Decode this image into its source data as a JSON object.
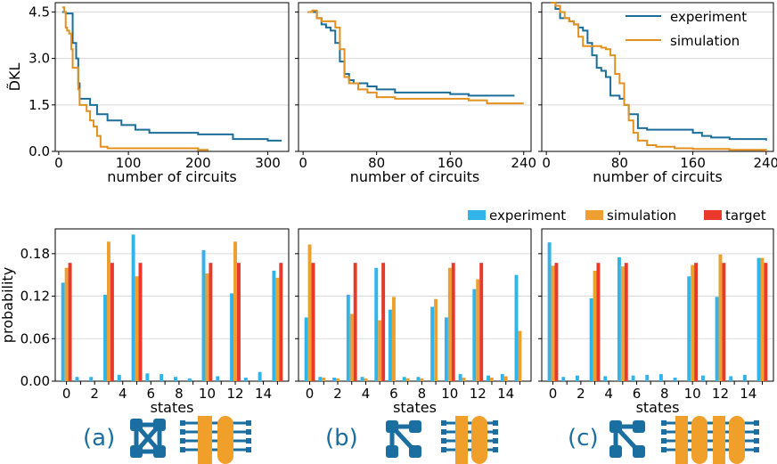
{
  "colors": {
    "exp_line": "#1a6e99",
    "sim_line": "#e3901f",
    "exp_bar": "#31b4ea",
    "sim_bar": "#eda02f",
    "target_bar": "#e8392a",
    "icon_blue": "#1b6fa0",
    "icon_orange": "#f0a02a"
  },
  "top_legend": [
    "experiment",
    "simulation"
  ],
  "bottom_legend": [
    "experiment",
    "simulation",
    "target"
  ],
  "panel_labels": [
    "(a)",
    "(b)",
    "(c)"
  ],
  "chart_data": [
    {
      "type": "line",
      "panel": "top-a",
      "xlabel": "number of circuits",
      "ylabel": "D̃KL",
      "xlim": [
        -5,
        330
      ],
      "ylim": [
        0,
        4.8
      ],
      "xticks": [
        0,
        100,
        200,
        300
      ],
      "yticks": [
        0.0,
        1.5,
        3.0,
        4.5
      ],
      "ytick_labels": [
        "0.0",
        "1.5",
        "3.0",
        "4.5"
      ],
      "series": [
        {
          "name": "experiment",
          "x": [
            5,
            10,
            12,
            15,
            18,
            20,
            25,
            28,
            30,
            35,
            40,
            45,
            50,
            55,
            60,
            70,
            80,
            90,
            100,
            110,
            120,
            130,
            140,
            150,
            200,
            250,
            260,
            300,
            320
          ],
          "y": [
            4.5,
            4.45,
            4.45,
            4.45,
            4.45,
            3.5,
            3.0,
            2.2,
            1.7,
            1.7,
            1.7,
            1.5,
            1.5,
            1.2,
            1.2,
            1.0,
            1.0,
            0.85,
            0.85,
            0.7,
            0.7,
            0.6,
            0.6,
            0.6,
            0.55,
            0.4,
            0.4,
            0.35,
            0.35
          ]
        },
        {
          "name": "simulation",
          "x": [
            5,
            8,
            10,
            12,
            15,
            18,
            20,
            22,
            25,
            28,
            30,
            35,
            40,
            45,
            50,
            55,
            60,
            70,
            100,
            150,
            200,
            215
          ],
          "y": [
            4.65,
            4.5,
            4.0,
            3.9,
            3.8,
            3.3,
            2.7,
            2.7,
            2.7,
            2.0,
            1.5,
            1.5,
            1.3,
            1.0,
            0.8,
            0.5,
            0.15,
            0.1,
            0.1,
            0.1,
            0.05,
            0.05
          ]
        }
      ]
    },
    {
      "type": "line",
      "panel": "top-b",
      "xlabel": "number of circuits",
      "ylabel": "",
      "xlim": [
        -5,
        248
      ],
      "ylim": [
        0,
        4.8
      ],
      "xticks": [
        0,
        80,
        160,
        240
      ],
      "yticks": [
        0.0,
        1.5,
        3.0,
        4.5
      ],
      "series": [
        {
          "name": "experiment",
          "x": [
            5,
            10,
            12,
            15,
            20,
            25,
            30,
            35,
            40,
            45,
            50,
            55,
            60,
            70,
            80,
            90,
            100,
            110,
            120,
            140,
            160,
            170,
            180,
            200,
            220,
            230
          ],
          "y": [
            4.5,
            4.5,
            4.5,
            4.3,
            4.1,
            4.0,
            3.9,
            3.5,
            2.9,
            2.5,
            2.3,
            2.2,
            2.2,
            2.1,
            2.0,
            2.0,
            1.9,
            1.9,
            1.9,
            1.9,
            1.85,
            1.85,
            1.8,
            1.8,
            1.8,
            1.8
          ]
        },
        {
          "name": "simulation",
          "x": [
            5,
            10,
            15,
            20,
            25,
            30,
            35,
            40,
            45,
            50,
            55,
            60,
            70,
            80,
            100,
            120,
            160,
            180,
            200,
            240
          ],
          "y": [
            4.5,
            4.55,
            4.3,
            4.2,
            4.2,
            4.2,
            4.0,
            3.3,
            2.4,
            2.2,
            2.2,
            2.0,
            1.9,
            1.75,
            1.7,
            1.7,
            1.7,
            1.65,
            1.55,
            1.55
          ]
        }
      ]
    },
    {
      "type": "line",
      "panel": "top-c",
      "xlabel": "number of circuits",
      "ylabel": "",
      "xlim": [
        -5,
        248
      ],
      "ylim": [
        0,
        4.8
      ],
      "xticks": [
        0,
        80,
        160,
        240
      ],
      "yticks": [
        0.0,
        1.5,
        3.0,
        4.5
      ],
      "series": [
        {
          "name": "experiment",
          "x": [
            5,
            10,
            15,
            20,
            25,
            30,
            35,
            40,
            45,
            50,
            55,
            60,
            65,
            70,
            75,
            80,
            85,
            90,
            95,
            100,
            110,
            120,
            140,
            160,
            170,
            180,
            200,
            220,
            240
          ],
          "y": [
            4.8,
            4.6,
            4.3,
            4.3,
            4.2,
            4.1,
            4.0,
            3.9,
            3.5,
            3.1,
            2.7,
            2.6,
            2.4,
            1.8,
            1.8,
            1.7,
            1.5,
            1.2,
            1.2,
            0.75,
            0.7,
            0.7,
            0.7,
            0.6,
            0.5,
            0.45,
            0.4,
            0.4,
            0.35
          ]
        },
        {
          "name": "simulation",
          "x": [
            5,
            10,
            15,
            20,
            25,
            30,
            35,
            40,
            45,
            50,
            55,
            60,
            65,
            70,
            75,
            80,
            85,
            90,
            95,
            100,
            110,
            120,
            140,
            160,
            200,
            240
          ],
          "y": [
            4.8,
            4.7,
            4.5,
            4.3,
            4.2,
            4.1,
            3.7,
            3.4,
            3.4,
            3.4,
            3.4,
            3.35,
            3.3,
            3.1,
            2.5,
            2.2,
            1.5,
            1.0,
            0.6,
            0.35,
            0.2,
            0.15,
            0.1,
            0.08,
            0.05,
            0.0
          ]
        }
      ]
    },
    {
      "type": "bar",
      "panel": "bottom-a",
      "xlabel": "states",
      "ylabel": "probability",
      "categories": [
        0,
        1,
        2,
        3,
        4,
        5,
        6,
        7,
        8,
        9,
        10,
        11,
        12,
        13,
        14,
        15
      ],
      "xtick_labels": [
        "0",
        "",
        "2",
        "",
        "4",
        "",
        "6",
        "",
        "8",
        "",
        "10",
        "",
        "12",
        "",
        "14",
        ""
      ],
      "ylim": [
        0,
        0.215
      ],
      "yticks": [
        0.0,
        0.06,
        0.12,
        0.18
      ],
      "ytick_labels": [
        "0.00",
        "0.06",
        "0.12",
        "0.18"
      ],
      "series": [
        {
          "name": "experiment",
          "values": [
            0.139,
            0.006,
            0.006,
            0.122,
            0.009,
            0.207,
            0.011,
            0.01,
            0.006,
            0.004,
            0.185,
            0.007,
            0.124,
            0.005,
            0.013,
            0.156
          ]
        },
        {
          "name": "simulation",
          "values": [
            0.16,
            0.0,
            0.0,
            0.197,
            0.0,
            0.148,
            0.0,
            0.0,
            0.0,
            0.0,
            0.152,
            0.0,
            0.197,
            0.0,
            0.0,
            0.146
          ]
        },
        {
          "name": "target",
          "values": [
            0.167,
            0.0,
            0.0,
            0.167,
            0.0,
            0.167,
            0.0,
            0.0,
            0.0,
            0.0,
            0.167,
            0.0,
            0.167,
            0.0,
            0.0,
            0.167
          ]
        }
      ]
    },
    {
      "type": "bar",
      "panel": "bottom-b",
      "xlabel": "states",
      "ylabel": "",
      "categories": [
        0,
        1,
        2,
        3,
        4,
        5,
        6,
        7,
        8,
        9,
        10,
        11,
        12,
        13,
        14,
        15
      ],
      "xtick_labels": [
        "0",
        "",
        "2",
        "",
        "4",
        "",
        "6",
        "",
        "8",
        "",
        "10",
        "",
        "12",
        "",
        "14",
        ""
      ],
      "ylim": [
        0,
        0.215
      ],
      "yticks": [
        0.0,
        0.06,
        0.12,
        0.18
      ],
      "series": [
        {
          "name": "experiment",
          "values": [
            0.09,
            0.006,
            0.005,
            0.122,
            0.006,
            0.16,
            0.101,
            0.006,
            0.006,
            0.105,
            0.09,
            0.01,
            0.13,
            0.008,
            0.01,
            0.15
          ]
        },
        {
          "name": "simulation",
          "values": [
            0.193,
            0.005,
            0.004,
            0.095,
            0.004,
            0.086,
            0.119,
            0.004,
            0.004,
            0.116,
            0.16,
            0.005,
            0.144,
            0.005,
            0.007,
            0.071
          ]
        },
        {
          "name": "target",
          "values": [
            0.167,
            0.0,
            0.0,
            0.167,
            0.0,
            0.167,
            0.0,
            0.0,
            0.0,
            0.0,
            0.167,
            0.0,
            0.167,
            0.0,
            0.0,
            0.0
          ]
        }
      ]
    },
    {
      "type": "bar",
      "panel": "bottom-c",
      "xlabel": "states",
      "ylabel": "",
      "categories": [
        0,
        1,
        2,
        3,
        4,
        5,
        6,
        7,
        8,
        9,
        10,
        11,
        12,
        13,
        14,
        15
      ],
      "xtick_labels": [
        "0",
        "",
        "2",
        "",
        "4",
        "",
        "6",
        "",
        "8",
        "",
        "10",
        "",
        "12",
        "",
        "14",
        ""
      ],
      "ylim": [
        0,
        0.215
      ],
      "yticks": [
        0.0,
        0.06,
        0.12,
        0.18
      ],
      "series": [
        {
          "name": "experiment",
          "values": [
            0.196,
            0.006,
            0.008,
            0.117,
            0.007,
            0.175,
            0.008,
            0.009,
            0.01,
            0.005,
            0.148,
            0.008,
            0.119,
            0.007,
            0.009,
            0.174
          ]
        },
        {
          "name": "simulation",
          "values": [
            0.163,
            0.0,
            0.0,
            0.156,
            0.0,
            0.162,
            0.0,
            0.0,
            0.0,
            0.0,
            0.164,
            0.0,
            0.179,
            0.0,
            0.0,
            0.174
          ]
        },
        {
          "name": "target",
          "values": [
            0.167,
            0.0,
            0.0,
            0.167,
            0.0,
            0.167,
            0.0,
            0.0,
            0.0,
            0.0,
            0.167,
            0.0,
            0.167,
            0.0,
            0.0,
            0.167
          ]
        }
      ]
    }
  ]
}
